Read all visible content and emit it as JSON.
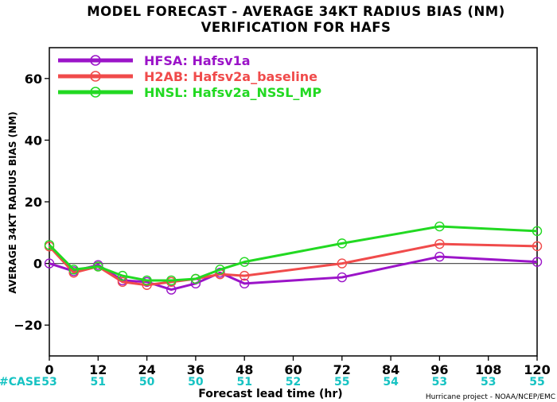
{
  "chart_data": {
    "type": "line",
    "title": "MODEL FORECAST - AVERAGE 34KT RADIUS BIAS (NM)",
    "subtitle": "VERIFICATION FOR HAFS",
    "ylabel": "AVERAGE 34KT RADIUS BIAS (NM)",
    "xlabel": "Forecast lead time (hr)",
    "credit": "Hurricane project - NOAA/NCEP/EMC",
    "xlim": [
      0,
      120
    ],
    "ylim": [
      -30,
      70
    ],
    "xticks": [
      0,
      12,
      24,
      36,
      48,
      60,
      72,
      84,
      96,
      108,
      120
    ],
    "yticks": [
      -20,
      0,
      20,
      40,
      60
    ],
    "ytick_labels": [
      "−20",
      "0",
      "20",
      "40",
      "60"
    ],
    "zero_line": true,
    "grid": false,
    "legend_position": "top-left",
    "case_label": "#CASE",
    "case_counts": [
      {
        "x": 0,
        "n": "53"
      },
      {
        "x": 12,
        "n": "51"
      },
      {
        "x": 24,
        "n": "50"
      },
      {
        "x": 36,
        "n": "50"
      },
      {
        "x": 48,
        "n": "51"
      },
      {
        "x": 60,
        "n": "52"
      },
      {
        "x": 72,
        "n": "55"
      },
      {
        "x": 84,
        "n": "54"
      },
      {
        "x": 96,
        "n": "53"
      },
      {
        "x": 108,
        "n": "53"
      },
      {
        "x": 120,
        "n": "55"
      }
    ],
    "case_color": "#17c3c3",
    "series": [
      {
        "name": "HFSA: Hafsv1a",
        "color": "#9b14c8",
        "x": [
          0,
          6,
          12,
          18,
          24,
          30,
          36,
          42,
          48,
          72,
          96,
          120
        ],
        "y": [
          0,
          -2.5,
          -0.5,
          -5.5,
          -6,
          -8.5,
          -6.5,
          -3,
          -6.5,
          -4.5,
          2.2,
          0.5
        ]
      },
      {
        "name": "H2AB: Hafsv2a_baseline",
        "color": "#f04b4b",
        "x": [
          0,
          6,
          12,
          18,
          24,
          30,
          36,
          42,
          48,
          72,
          96,
          120
        ],
        "y": [
          5.5,
          -3,
          -1,
          -6,
          -7,
          -6,
          -5,
          -3.5,
          -4,
          0,
          6.3,
          5.6
        ]
      },
      {
        "name": "HNSL: Hafsv2a_NSSL_MP",
        "color": "#22d922",
        "x": [
          0,
          6,
          12,
          18,
          24,
          30,
          36,
          42,
          48,
          72,
          96,
          120
        ],
        "y": [
          6,
          -2,
          -1,
          -4,
          -5.5,
          -5.5,
          -5,
          -2,
          0.5,
          6.5,
          12,
          10.5
        ]
      }
    ]
  }
}
